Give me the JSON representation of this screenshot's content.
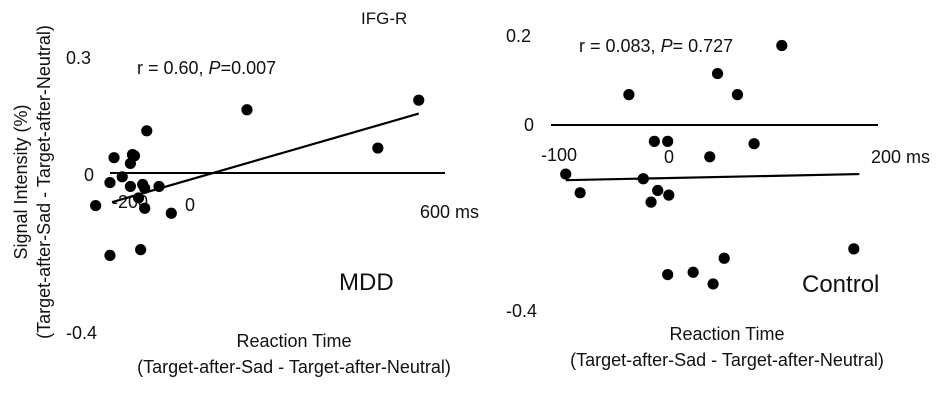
{
  "chart_data": [
    {
      "type": "scatter",
      "panel_label": "IFG-R",
      "group_label": "MDD",
      "ylabel_lines": [
        "Signal Intensity (%)",
        "(Target-after-Sad - Target-after-Neutral)"
      ],
      "xlabel_lines": [
        "Reaction Time",
        "(Target-after-Sad - Target-after-Neutral)"
      ],
      "annotation": {
        "pre": "r = 0.60, ",
        "p_symbol": "P",
        "post": "=0.007"
      },
      "x_ticks": [
        "-200",
        "0",
        "600 ms"
      ],
      "y_ticks": [
        "0.3",
        "0",
        "-0.4"
      ],
      "xlim": [
        -250,
        650
      ],
      "ylim": [
        -0.4,
        0.3
      ],
      "fit": {
        "x": [
          -200,
          550
        ],
        "y": [
          -0.076,
          0.155
        ]
      },
      "points": [
        {
          "x": -240,
          "y": -0.085
        },
        {
          "x": -205,
          "y": -0.215
        },
        {
          "x": -205,
          "y": -0.025
        },
        {
          "x": -195,
          "y": 0.04
        },
        {
          "x": -175,
          "y": -0.01
        },
        {
          "x": -155,
          "y": 0.025
        },
        {
          "x": -150,
          "y": 0.048
        },
        {
          "x": -155,
          "y": -0.035
        },
        {
          "x": -145,
          "y": 0.045
        },
        {
          "x": -135,
          "y": -0.065
        },
        {
          "x": -130,
          "y": -0.2
        },
        {
          "x": -125,
          "y": -0.03
        },
        {
          "x": -120,
          "y": -0.092
        },
        {
          "x": -120,
          "y": -0.04
        },
        {
          "x": -115,
          "y": 0.11
        },
        {
          "x": -85,
          "y": -0.035
        },
        {
          "x": -55,
          "y": -0.105
        },
        {
          "x": 130,
          "y": 0.165
        },
        {
          "x": 450,
          "y": 0.065
        },
        {
          "x": 550,
          "y": 0.19
        }
      ]
    },
    {
      "type": "scatter",
      "group_label": "Control",
      "xlabel_lines": [
        "Reaction Time",
        "(Target-after-Sad - Target-after-Neutral)"
      ],
      "annotation": {
        "pre": "r = 0.083, ",
        "p_symbol": "P",
        "post": "= 0.727"
      },
      "x_ticks": [
        "-100",
        "0",
        "200 ms"
      ],
      "y_ticks": [
        "0.2",
        "0",
        "-0.4"
      ],
      "xlim": [
        -120,
        240
      ],
      "ylim": [
        -0.4,
        0.2
      ],
      "fit": {
        "x": [
          -95,
          170
        ],
        "y": [
          -0.118,
          -0.105
        ]
      },
      "points": [
        {
          "x": -95,
          "y": -0.105
        },
        {
          "x": -82,
          "y": -0.145
        },
        {
          "x": -38,
          "y": 0.065
        },
        {
          "x": -25,
          "y": -0.115
        },
        {
          "x": -18,
          "y": -0.165
        },
        {
          "x": -15,
          "y": -0.035
        },
        {
          "x": -12,
          "y": -0.14
        },
        {
          "x": -3,
          "y": -0.035
        },
        {
          "x": -2,
          "y": -0.15
        },
        {
          "x": -3,
          "y": -0.32
        },
        {
          "x": 20,
          "y": -0.315
        },
        {
          "x": 35,
          "y": -0.068
        },
        {
          "x": 38,
          "y": -0.34
        },
        {
          "x": 42,
          "y": 0.11
        },
        {
          "x": 48,
          "y": -0.285
        },
        {
          "x": 60,
          "y": 0.065
        },
        {
          "x": 75,
          "y": -0.04
        },
        {
          "x": 100,
          "y": 0.17
        },
        {
          "x": 165,
          "y": -0.265
        }
      ]
    }
  ]
}
